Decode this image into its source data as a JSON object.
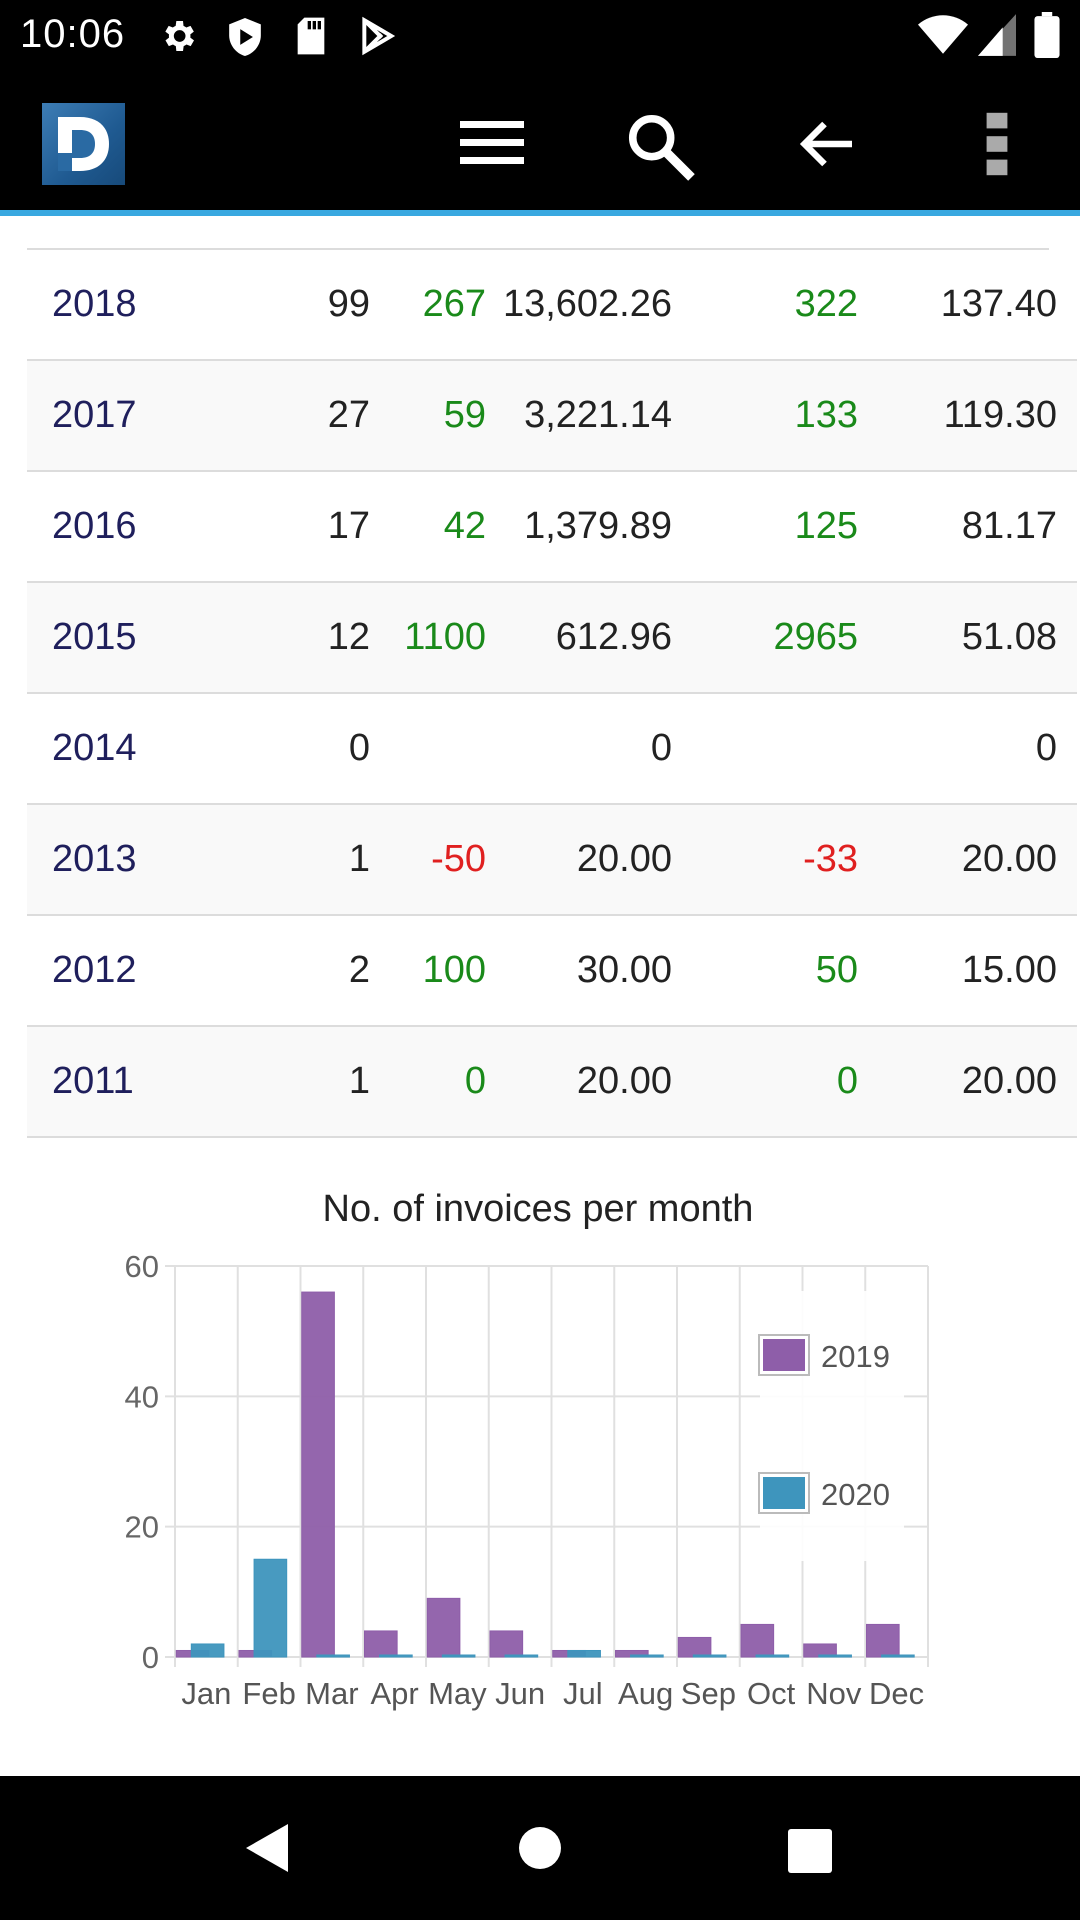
{
  "status_bar": {
    "time": "10:06",
    "icons": [
      "gear-icon",
      "shield-icon",
      "sd-card-icon",
      "play-store-icon",
      "wifi-icon",
      "signal-icon",
      "battery-icon"
    ]
  },
  "app_bar": {
    "logo_letter": "D",
    "icons": [
      "menu-icon",
      "search-icon",
      "back-arrow-icon",
      "more-vert-icon"
    ]
  },
  "table": {
    "rows": [
      {
        "year": "2018",
        "count": "99",
        "count_change": "267",
        "count_change_type": "pos",
        "amount": "13,602.26",
        "amount_change": "322",
        "amount_change_type": "pos",
        "average": "137.40"
      },
      {
        "year": "2017",
        "count": "27",
        "count_change": "59",
        "count_change_type": "pos",
        "amount": "3,221.14",
        "amount_change": "133",
        "amount_change_type": "pos",
        "average": "119.30"
      },
      {
        "year": "2016",
        "count": "17",
        "count_change": "42",
        "count_change_type": "pos",
        "amount": "1,379.89",
        "amount_change": "125",
        "amount_change_type": "pos",
        "average": "81.17"
      },
      {
        "year": "2015",
        "count": "12",
        "count_change": "1100",
        "count_change_type": "pos",
        "amount": "612.96",
        "amount_change": "2965",
        "amount_change_type": "pos",
        "average": "51.08"
      },
      {
        "year": "2014",
        "count": "0",
        "count_change": "",
        "count_change_type": "pos",
        "amount": "0",
        "amount_change": "",
        "amount_change_type": "pos",
        "average": "0"
      },
      {
        "year": "2013",
        "count": "1",
        "count_change": "-50",
        "count_change_type": "neg",
        "amount": "20.00",
        "amount_change": "-33",
        "amount_change_type": "neg",
        "average": "20.00"
      },
      {
        "year": "2012",
        "count": "2",
        "count_change": "100",
        "count_change_type": "pos",
        "amount": "30.00",
        "amount_change": "50",
        "amount_change_type": "pos",
        "average": "15.00"
      },
      {
        "year": "2011",
        "count": "1",
        "count_change": "0",
        "count_change_type": "pos",
        "amount": "20.00",
        "amount_change": "0",
        "amount_change_type": "pos",
        "average": "20.00"
      }
    ]
  },
  "chart_title": "No. of invoices per month",
  "chart_data": {
    "type": "bar",
    "title": "No. of invoices per month",
    "categories": [
      "Jan",
      "Feb",
      "Mar",
      "Apr",
      "May",
      "Jun",
      "Jul",
      "Aug",
      "Sep",
      "Oct",
      "Nov",
      "Dec"
    ],
    "series": [
      {
        "name": "2019",
        "color": "#8e5ea9",
        "values": [
          1,
          1,
          56,
          4,
          9,
          4,
          1,
          1,
          3,
          5,
          2,
          5
        ]
      },
      {
        "name": "2020",
        "color": "#3e95bd",
        "values": [
          2,
          15,
          0,
          0,
          0,
          0,
          1,
          0,
          0,
          0,
          0,
          0
        ]
      }
    ],
    "yticks": [
      "0",
      "20",
      "40",
      "60"
    ],
    "ylim": [
      0,
      60
    ],
    "grid": true,
    "legend": "right"
  },
  "colors": {
    "accent": "#39a8e0",
    "year_text": "#1f1f5c",
    "positive": "#1a8a1a",
    "negative": "#e02020"
  },
  "nav_bar": {
    "icons": [
      "nav-back-icon",
      "nav-home-icon",
      "nav-recents-icon"
    ]
  }
}
